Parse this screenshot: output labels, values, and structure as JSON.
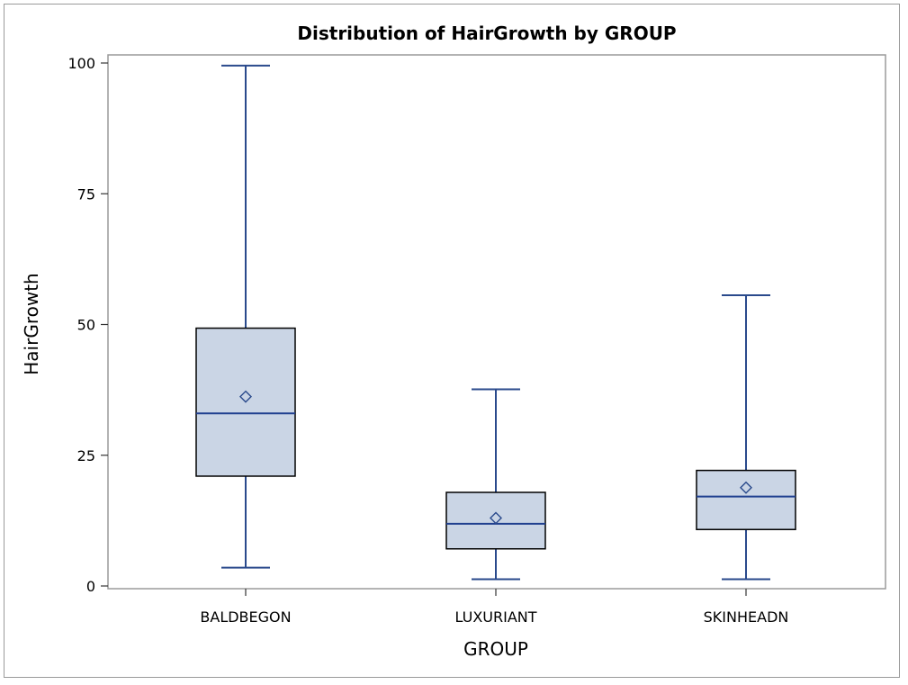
{
  "chart_data": {
    "type": "box",
    "title": "Distribution of HairGrowth by GROUP",
    "xlabel": "GROUP",
    "ylabel": "HairGrowth",
    "ylim": [
      0,
      100
    ],
    "yticks": [
      "0",
      "25",
      "50",
      "75",
      "100"
    ],
    "categories": [
      "BALDBEGON",
      "LUXURIANT",
      "SKINHEADN"
    ],
    "boxes": [
      {
        "category": "BALDBEGON",
        "min": 3.5,
        "q1": 21,
        "median": 33,
        "q3": 49.3,
        "max": 99.5,
        "mean": 36.2
      },
      {
        "category": "LUXURIANT",
        "min": 1.3,
        "q1": 7.1,
        "median": 11.9,
        "q3": 17.9,
        "max": 37.6,
        "mean": 13
      },
      {
        "category": "SKINHEADN",
        "min": 1.3,
        "q1": 10.8,
        "median": 17.1,
        "q3": 22.1,
        "max": 55.6,
        "mean": 18.8
      }
    ],
    "grid": false,
    "colors": {
      "box_fill": "#cad5e5",
      "box_outline": "#000000",
      "whisker": "#2a4a8c",
      "median": "#1f3f8f",
      "mean_marker": "#2a4a8c"
    }
  }
}
